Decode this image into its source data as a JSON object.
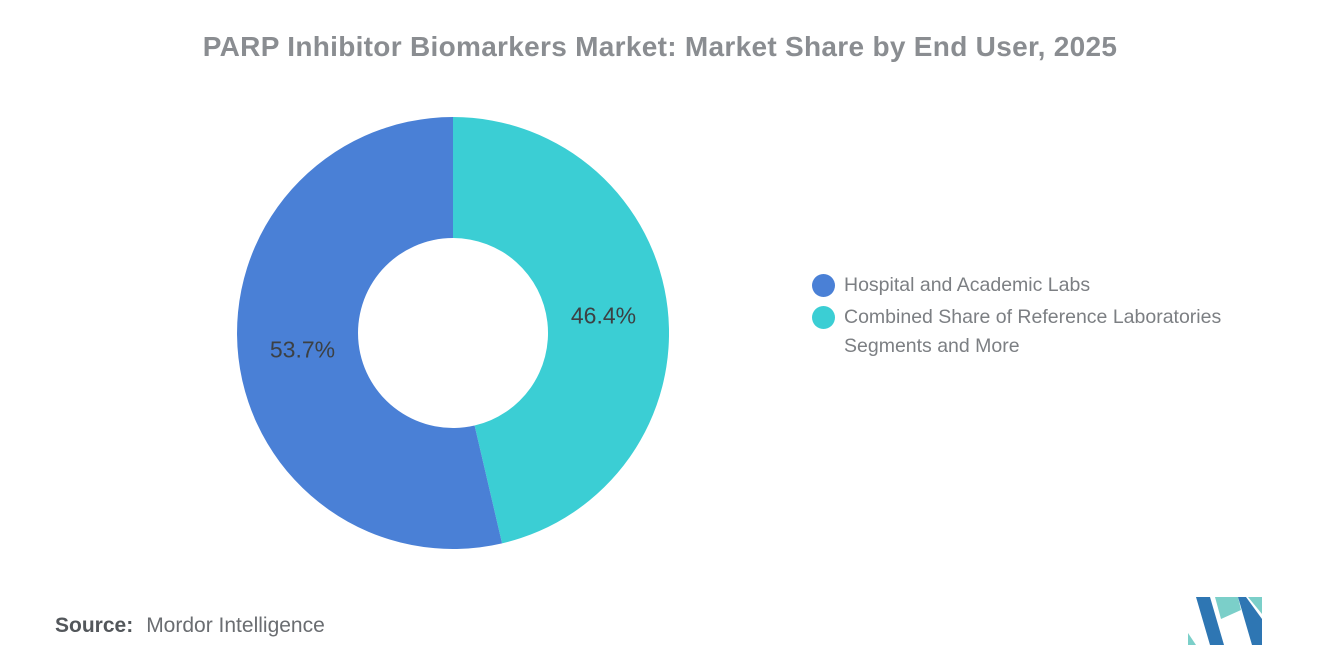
{
  "title": "PARP Inhibitor Biomarkers Market: Market Share by End User, 2025",
  "chart_data": {
    "type": "pie",
    "title": "PARP Inhibitor Biomarkers Market: Market Share by End User, 2025",
    "donut": true,
    "inner_radius_ratio": 0.44,
    "start_angle_deg": 0,
    "direction": "clockwise from 12 o'clock, second slice drawn first",
    "legend_position": "right",
    "slices": [
      {
        "name": "Hospital and Academic Labs",
        "value": 53.7,
        "label": "53.7%",
        "color": "#4A80D6"
      },
      {
        "name": "Combined Share of Reference Laboratories Segments and More",
        "value": 46.4,
        "label": "46.4%",
        "color": "#3BCED4"
      }
    ]
  },
  "legend": {
    "items": [
      {
        "label": "Hospital and Academic Labs",
        "color": "#4A80D6"
      },
      {
        "label": "Combined Share of Reference Laboratories Segments and More",
        "color": "#3BCED4"
      }
    ]
  },
  "source": {
    "label": "Source:",
    "text": "Mordor Intelligence"
  },
  "logo": {
    "name": "Mordor Intelligence logo",
    "blue": "#2E76B3",
    "teal": "#7BCFC9"
  }
}
